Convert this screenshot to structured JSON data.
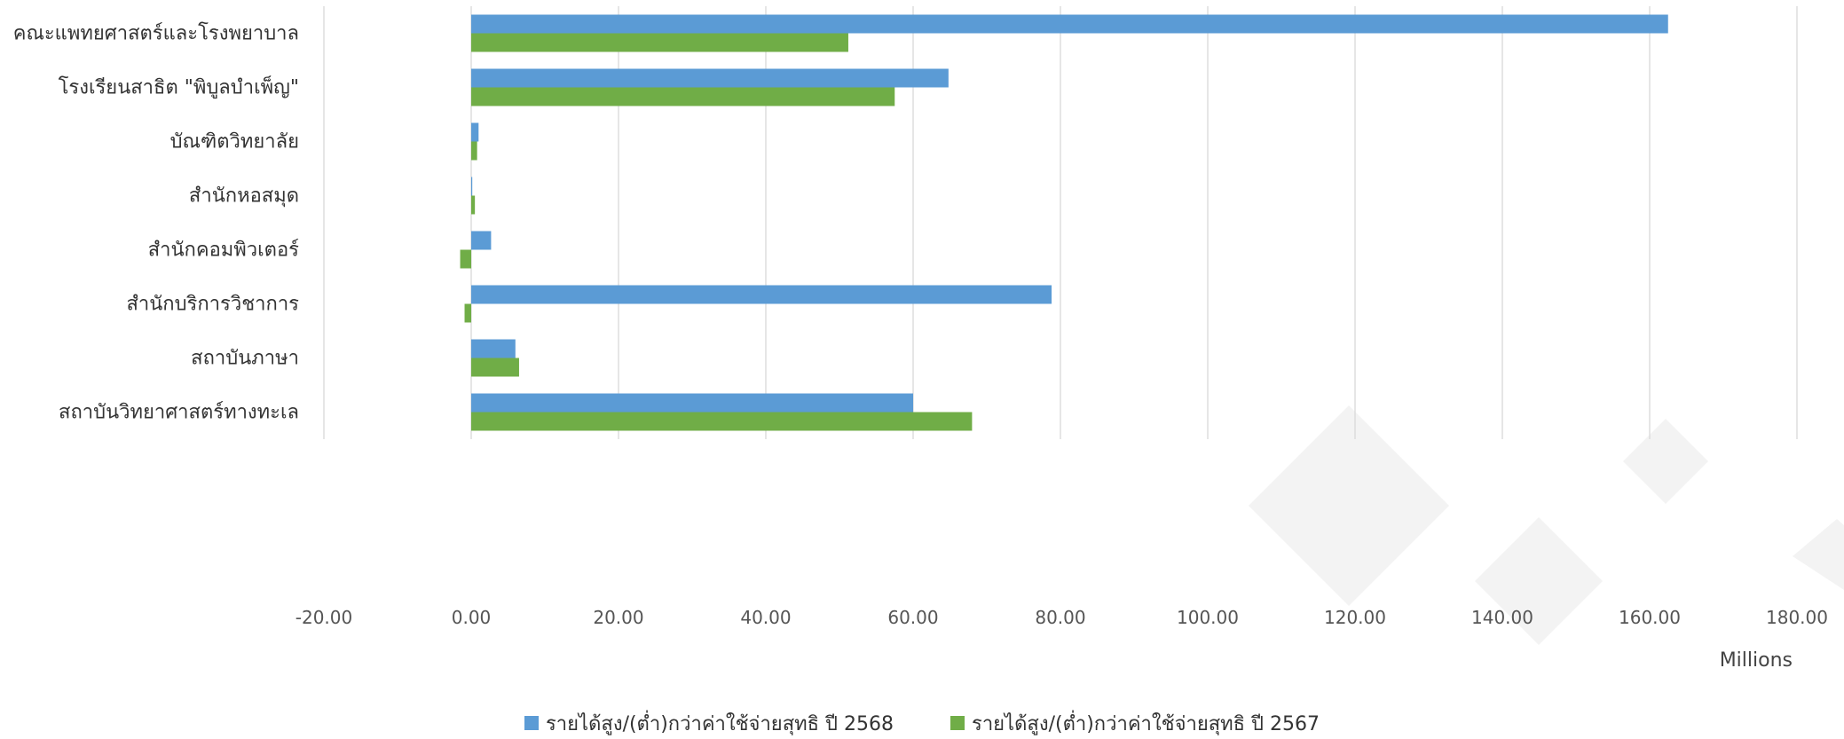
{
  "chart_data": {
    "type": "bar",
    "orientation": "horizontal",
    "categories": [
      "คณะแพทยศาสตร์และโรงพยาบาล",
      "โรงเรียนสาธิต \"พิบูลบำเพ็ญ\"",
      "บัณฑิตวิทยาลัย",
      "สำนักหอสมุด",
      "สำนักคอมพิวเตอร์",
      "สำนักบริการวิชาการ",
      "สถาบันภาษา",
      "สถาบันวิทยาศาสตร์ทางทะเล"
    ],
    "series": [
      {
        "name": "รายได้สูง/(ต่ำ)กว่าค่าใช้จ่ายสุทธิ ปี 2568",
        "color": "#5b9bd5",
        "values": [
          162.5,
          64.8,
          1.0,
          0.1,
          2.7,
          78.8,
          6.0,
          60.0
        ]
      },
      {
        "name": "รายได้สูง/(ต่ำ)กว่าค่าใช้จ่ายสุทธิ ปี 2567",
        "color": "#70ad47",
        "values": [
          51.2,
          57.5,
          0.8,
          0.5,
          -1.5,
          -0.9,
          6.5,
          68.0
        ]
      }
    ],
    "xlim": [
      -20,
      180
    ],
    "xticks": [
      "-20.00",
      "0.00",
      "20.00",
      "40.00",
      "60.00",
      "80.00",
      "100.00",
      "120.00",
      "140.00",
      "160.00",
      "180.00"
    ],
    "xunit": "Millions",
    "grid": true,
    "legend_position": "bottom"
  }
}
